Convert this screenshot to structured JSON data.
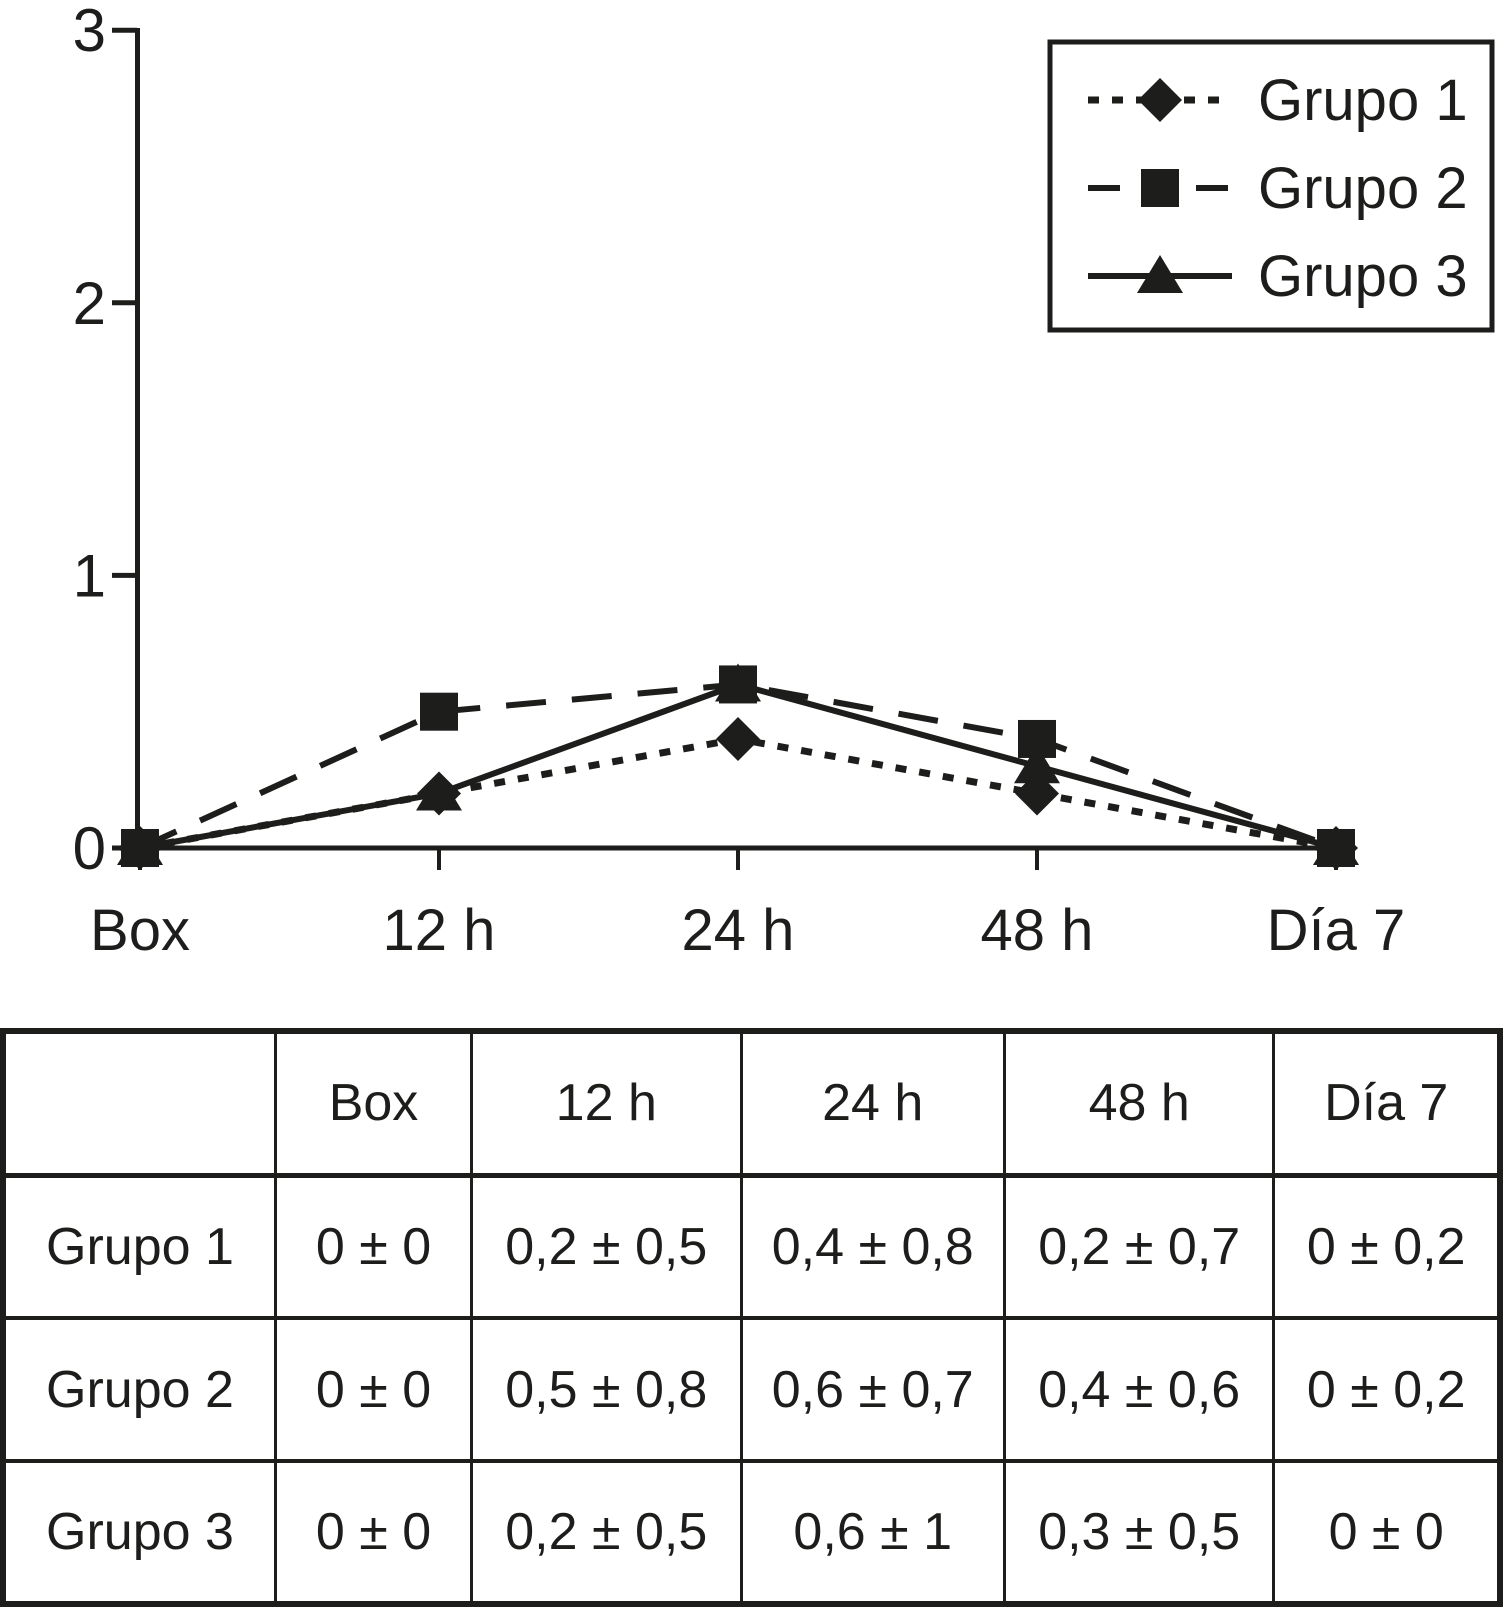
{
  "figure": {
    "ink_color": "#1d1d1b",
    "background_color": "#ffffff"
  },
  "chart_data": {
    "type": "line",
    "title": "",
    "xlabel": "",
    "ylabel": "",
    "categories": [
      "Box",
      "12 h",
      "24 h",
      "48 h",
      "Día 7"
    ],
    "series": [
      {
        "name": "Grupo 1",
        "values": [
          0,
          0.2,
          0.4,
          0.2,
          0
        ],
        "marker": "diamond",
        "line_style": "dotted"
      },
      {
        "name": "Grupo 2",
        "values": [
          0,
          0.5,
          0.6,
          0.4,
          0
        ],
        "marker": "square",
        "line_style": "dashed"
      },
      {
        "name": "Grupo 3",
        "values": [
          0,
          0.2,
          0.6,
          0.3,
          0
        ],
        "marker": "triangle",
        "line_style": "solid"
      }
    ],
    "ylim": [
      0,
      3
    ],
    "yticks": [
      "0",
      "1",
      "2",
      "3"
    ],
    "grid": false,
    "legend_position": "top-right",
    "legend_items": [
      "Grupo 1",
      "Grupo 2",
      "Grupo 3"
    ]
  },
  "table": {
    "header": [
      "",
      "Box",
      "12 h",
      "24 h",
      "48 h",
      "Día 7"
    ],
    "rows": [
      {
        "label": "Grupo 1",
        "cells": [
          "0 ± 0",
          "0,2 ± 0,5",
          "0,4 ± 0,8",
          "0,2 ± 0,7",
          "0 ± 0,2"
        ]
      },
      {
        "label": "Grupo 2",
        "cells": [
          "0 ± 0",
          "0,5 ± 0,8",
          "0,6 ± 0,7",
          "0,4 ± 0,6",
          "0 ± 0,2"
        ]
      },
      {
        "label": "Grupo 3",
        "cells": [
          "0 ± 0",
          "0,2 ± 0,5",
          "0,6 ± 1",
          "0,3 ± 0,5",
          "0 ± 0"
        ]
      }
    ]
  }
}
